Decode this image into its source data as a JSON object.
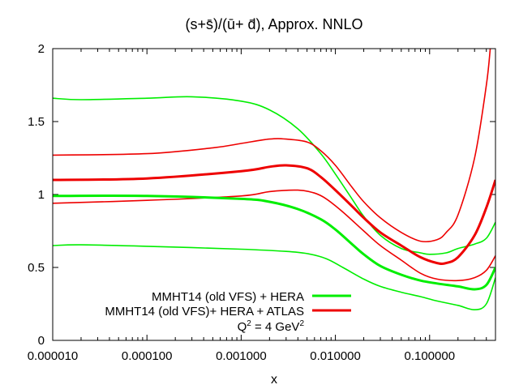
{
  "chart_data": {
    "type": "line",
    "title": "(s+s̄)/(ū+ d̄), Approx. NNLO",
    "xlabel": "x",
    "ylabel": "",
    "xscale": "log",
    "xlim": [
      1e-05,
      0.5
    ],
    "ylim": [
      0,
      2
    ],
    "xticks": [
      1e-05,
      0.0001,
      0.001,
      0.01,
      0.1
    ],
    "xtick_labels": [
      "0.000010",
      "0.000100",
      "0.001000",
      "0.010000",
      "0.100000"
    ],
    "yticks": [
      0,
      0.5,
      1,
      1.5,
      2
    ],
    "ytick_labels": [
      "0",
      "0.5",
      "1",
      "1.5",
      "2"
    ],
    "legend_position": "bottom-center",
    "annotation": {
      "prefix": "Q",
      "sup1": "2",
      "middle": " = 4 GeV",
      "sup2": "2"
    },
    "series": [
      {
        "name": "MMHT14 (old VFS) + HERA",
        "color": "#00ee00",
        "role": "central",
        "in_legend": true,
        "points": [
          [
            1e-05,
            0.99
          ],
          [
            0.0001,
            0.99
          ],
          [
            0.001,
            0.97
          ],
          [
            0.002,
            0.95
          ],
          [
            0.004,
            0.9
          ],
          [
            0.007,
            0.83
          ],
          [
            0.01,
            0.76
          ],
          [
            0.015,
            0.66
          ],
          [
            0.02,
            0.59
          ],
          [
            0.03,
            0.51
          ],
          [
            0.05,
            0.45
          ],
          [
            0.08,
            0.41
          ],
          [
            0.12,
            0.39
          ],
          [
            0.2,
            0.37
          ],
          [
            0.3,
            0.35
          ],
          [
            0.4,
            0.38
          ],
          [
            0.5,
            0.5
          ]
        ]
      },
      {
        "name": "MMHT14 (old VFS)+ HERA + ATLAS",
        "color": "#ee0000",
        "role": "central",
        "in_legend": true,
        "points": [
          [
            1e-05,
            1.1
          ],
          [
            0.0001,
            1.11
          ],
          [
            0.001,
            1.16
          ],
          [
            0.002,
            1.19
          ],
          [
            0.003,
            1.2
          ],
          [
            0.005,
            1.18
          ],
          [
            0.007,
            1.12
          ],
          [
            0.01,
            1.03
          ],
          [
            0.015,
            0.92
          ],
          [
            0.02,
            0.84
          ],
          [
            0.03,
            0.74
          ],
          [
            0.05,
            0.65
          ],
          [
            0.08,
            0.57
          ],
          [
            0.12,
            0.53
          ],
          [
            0.15,
            0.53
          ],
          [
            0.2,
            0.57
          ],
          [
            0.3,
            0.72
          ],
          [
            0.4,
            0.91
          ],
          [
            0.5,
            1.1
          ]
        ]
      },
      {
        "name": "MMHT14 (old VFS) + HERA upper band",
        "color": "#00ee00",
        "role": "band",
        "in_legend": false,
        "points": [
          [
            1e-05,
            1.66
          ],
          [
            2e-05,
            1.65
          ],
          [
            0.0001,
            1.66
          ],
          [
            0.0003,
            1.67
          ],
          [
            0.001,
            1.64
          ],
          [
            0.002,
            1.58
          ],
          [
            0.004,
            1.45
          ],
          [
            0.007,
            1.28
          ],
          [
            0.01,
            1.14
          ],
          [
            0.015,
            0.97
          ],
          [
            0.02,
            0.85
          ],
          [
            0.03,
            0.72
          ],
          [
            0.05,
            0.63
          ],
          [
            0.08,
            0.6
          ],
          [
            0.1,
            0.59
          ],
          [
            0.15,
            0.6
          ],
          [
            0.2,
            0.63
          ],
          [
            0.3,
            0.66
          ],
          [
            0.4,
            0.7
          ],
          [
            0.5,
            0.81
          ]
        ]
      },
      {
        "name": "MMHT14 (old VFS) + HERA lower band",
        "color": "#00ee00",
        "role": "band",
        "in_legend": false,
        "points": [
          [
            1e-05,
            0.65
          ],
          [
            2e-05,
            0.655
          ],
          [
            0.0001,
            0.645
          ],
          [
            0.001,
            0.625
          ],
          [
            0.003,
            0.61
          ],
          [
            0.005,
            0.595
          ],
          [
            0.008,
            0.56
          ],
          [
            0.012,
            0.5
          ],
          [
            0.02,
            0.42
          ],
          [
            0.03,
            0.37
          ],
          [
            0.05,
            0.33
          ],
          [
            0.08,
            0.3
          ],
          [
            0.12,
            0.27
          ],
          [
            0.2,
            0.24
          ],
          [
            0.3,
            0.21
          ],
          [
            0.4,
            0.25
          ],
          [
            0.5,
            0.43
          ]
        ]
      },
      {
        "name": "MMHT14 (old VFS)+ HERA + ATLAS upper band",
        "color": "#ee0000",
        "role": "band",
        "in_legend": false,
        "points": [
          [
            1e-05,
            1.27
          ],
          [
            0.0001,
            1.28
          ],
          [
            0.0005,
            1.32
          ],
          [
            0.001,
            1.35
          ],
          [
            0.002,
            1.38
          ],
          [
            0.003,
            1.38
          ],
          [
            0.005,
            1.36
          ],
          [
            0.007,
            1.3
          ],
          [
            0.01,
            1.2
          ],
          [
            0.015,
            1.05
          ],
          [
            0.02,
            0.95
          ],
          [
            0.03,
            0.84
          ],
          [
            0.05,
            0.74
          ],
          [
            0.08,
            0.68
          ],
          [
            0.12,
            0.69
          ],
          [
            0.15,
            0.74
          ],
          [
            0.2,
            0.86
          ],
          [
            0.3,
            1.25
          ],
          [
            0.4,
            1.75
          ],
          [
            0.44,
            2.0
          ]
        ]
      },
      {
        "name": "MMHT14 (old VFS)+ HERA + ATLAS lower band",
        "color": "#ee0000",
        "role": "band",
        "in_legend": false,
        "points": [
          [
            1e-05,
            0.94
          ],
          [
            0.0001,
            0.96
          ],
          [
            0.001,
            0.99
          ],
          [
            0.002,
            1.02
          ],
          [
            0.004,
            1.03
          ],
          [
            0.006,
            1.01
          ],
          [
            0.008,
            0.97
          ],
          [
            0.012,
            0.88
          ],
          [
            0.02,
            0.75
          ],
          [
            0.03,
            0.65
          ],
          [
            0.05,
            0.55
          ],
          [
            0.08,
            0.46
          ],
          [
            0.12,
            0.42
          ],
          [
            0.2,
            0.41
          ],
          [
            0.3,
            0.43
          ],
          [
            0.4,
            0.48
          ],
          [
            0.5,
            0.58
          ]
        ]
      }
    ]
  }
}
